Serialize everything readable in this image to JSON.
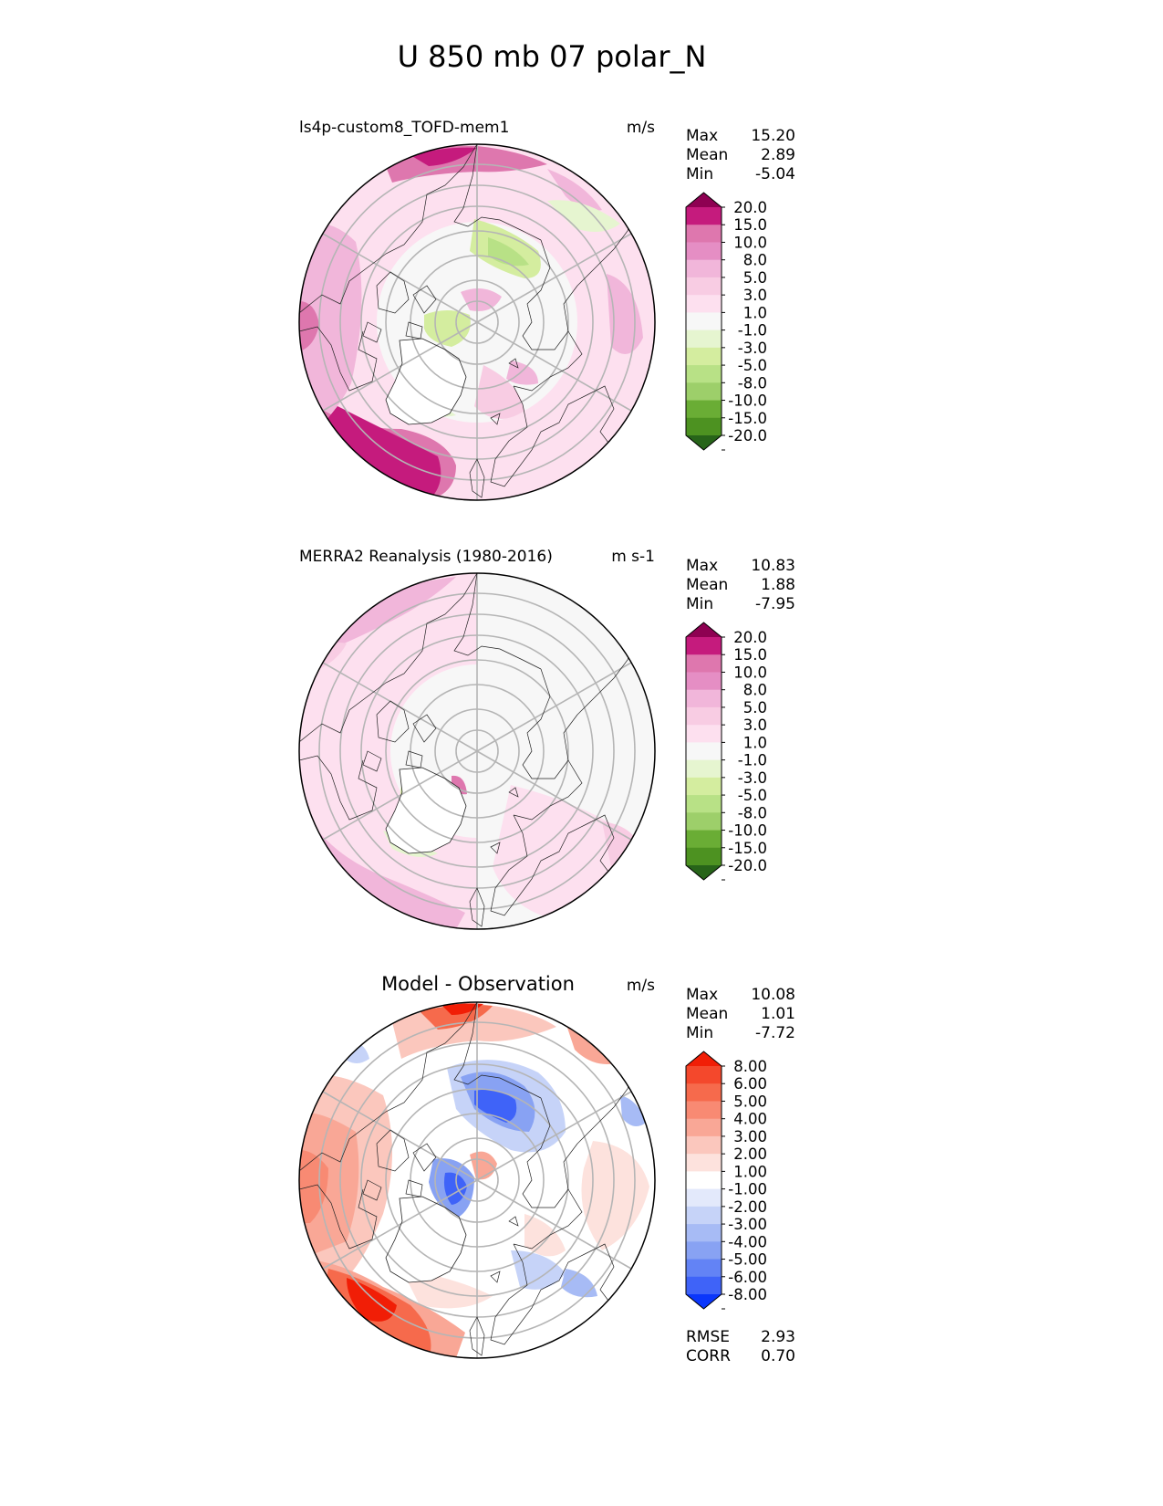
{
  "page_title": "U 850 mb 07 polar_N",
  "colors": {
    "diverging_pink_green": [
      "#276419",
      "#4d9221",
      "#6aad35",
      "#9dcf6a",
      "#b8e186",
      "#d4ed9f",
      "#e6f5d0",
      "#f7f7f7",
      "#fde0ef",
      "#f8cce3",
      "#f1b6da",
      "#e58ec4",
      "#de77ae",
      "#c51b7d",
      "#8e0152"
    ],
    "diverging_red_blue": [
      "#0a36fb",
      "#3f63f8",
      "#6383f5",
      "#88a2f3",
      "#a7bbf5",
      "#c6d3f8",
      "#e3e9fb",
      "#ffffff",
      "#fde2dd",
      "#fbc7bd",
      "#f9a796",
      "#f88a73",
      "#f66a4c",
      "#f4482c",
      "#f11e06"
    ],
    "coastline": "#222222",
    "graticule": "#b5b5b5"
  },
  "chart_data": [
    {
      "type": "heatmap",
      "projection": "north-polar-stereographic",
      "title": "ls4p-custom8_TOFD-mem1",
      "units": "m/s",
      "stats": [
        {
          "label": "Max",
          "value": "15.20"
        },
        {
          "label": "Mean",
          "value": "2.89"
        },
        {
          "label": "Min",
          "value": "-5.04"
        }
      ],
      "colorbar_palette": "diverging_pink_green",
      "colorbar_ticks": [
        "20.0",
        "15.0",
        "10.0",
        "8.0",
        "5.0",
        "3.0",
        "1.0",
        "-1.0",
        "-3.0",
        "-5.0",
        "-8.0",
        "-10.0",
        "-15.0",
        "-20.0"
      ],
      "field_features": [
        {
          "region": "north Pacific jet (bottom-left arc)",
          "value": 12
        },
        {
          "region": "north Atlantic jet (top arc)",
          "value": 11
        },
        {
          "region": "Eurasian Arctic coast",
          "value": -4
        },
        {
          "region": "Greenland",
          "value": -2
        },
        {
          "region": "mid-latitude ring",
          "value": 4
        }
      ]
    },
    {
      "type": "heatmap",
      "projection": "north-polar-stereographic",
      "title": "MERRA2 Reanalysis (1980-2016)",
      "units": "m s-1",
      "stats": [
        {
          "label": "Max",
          "value": "10.83"
        },
        {
          "label": "Mean",
          "value": "1.88"
        },
        {
          "label": "Min",
          "value": "-7.95"
        }
      ],
      "colorbar_palette": "diverging_pink_green",
      "colorbar_ticks": [
        "20.0",
        "15.0",
        "10.0",
        "8.0",
        "5.0",
        "3.0",
        "1.0",
        "-1.0",
        "-3.0",
        "-5.0",
        "-8.0",
        "-10.0",
        "-15.0",
        "-20.0"
      ],
      "field_features": [
        {
          "region": "north Pacific jet (bottom-left arc)",
          "value": 7
        },
        {
          "region": "north Atlantic jet (top-left arc)",
          "value": 6
        },
        {
          "region": "Greenland",
          "value": -2
        },
        {
          "region": "Arctic basin",
          "value": 1
        }
      ]
    },
    {
      "type": "heatmap",
      "projection": "north-polar-stereographic",
      "title": "Model - Observation",
      "units": "m/s",
      "stats": [
        {
          "label": "Max",
          "value": "10.08"
        },
        {
          "label": "Mean",
          "value": "1.01"
        },
        {
          "label": "Min",
          "value": "-7.72"
        }
      ],
      "colorbar_palette": "diverging_red_blue",
      "colorbar_ticks": [
        "8.00",
        "6.00",
        "5.00",
        "4.00",
        "3.00",
        "2.00",
        "1.00",
        "-1.00",
        "-2.00",
        "-3.00",
        "-4.00",
        "-5.00",
        "-6.00",
        "-8.00"
      ],
      "field_features": [
        {
          "region": "north Pacific (bottom-left arc)",
          "value": 8
        },
        {
          "region": "north Atlantic (top arc)",
          "value": 6
        },
        {
          "region": "Eurasian Arctic coast",
          "value": -5
        },
        {
          "region": "Greenland",
          "value": -6
        },
        {
          "region": "near pole",
          "value": 3
        }
      ],
      "metrics": [
        {
          "label": "RMSE",
          "value": "2.93"
        },
        {
          "label": "CORR",
          "value": "0.70"
        }
      ]
    }
  ]
}
